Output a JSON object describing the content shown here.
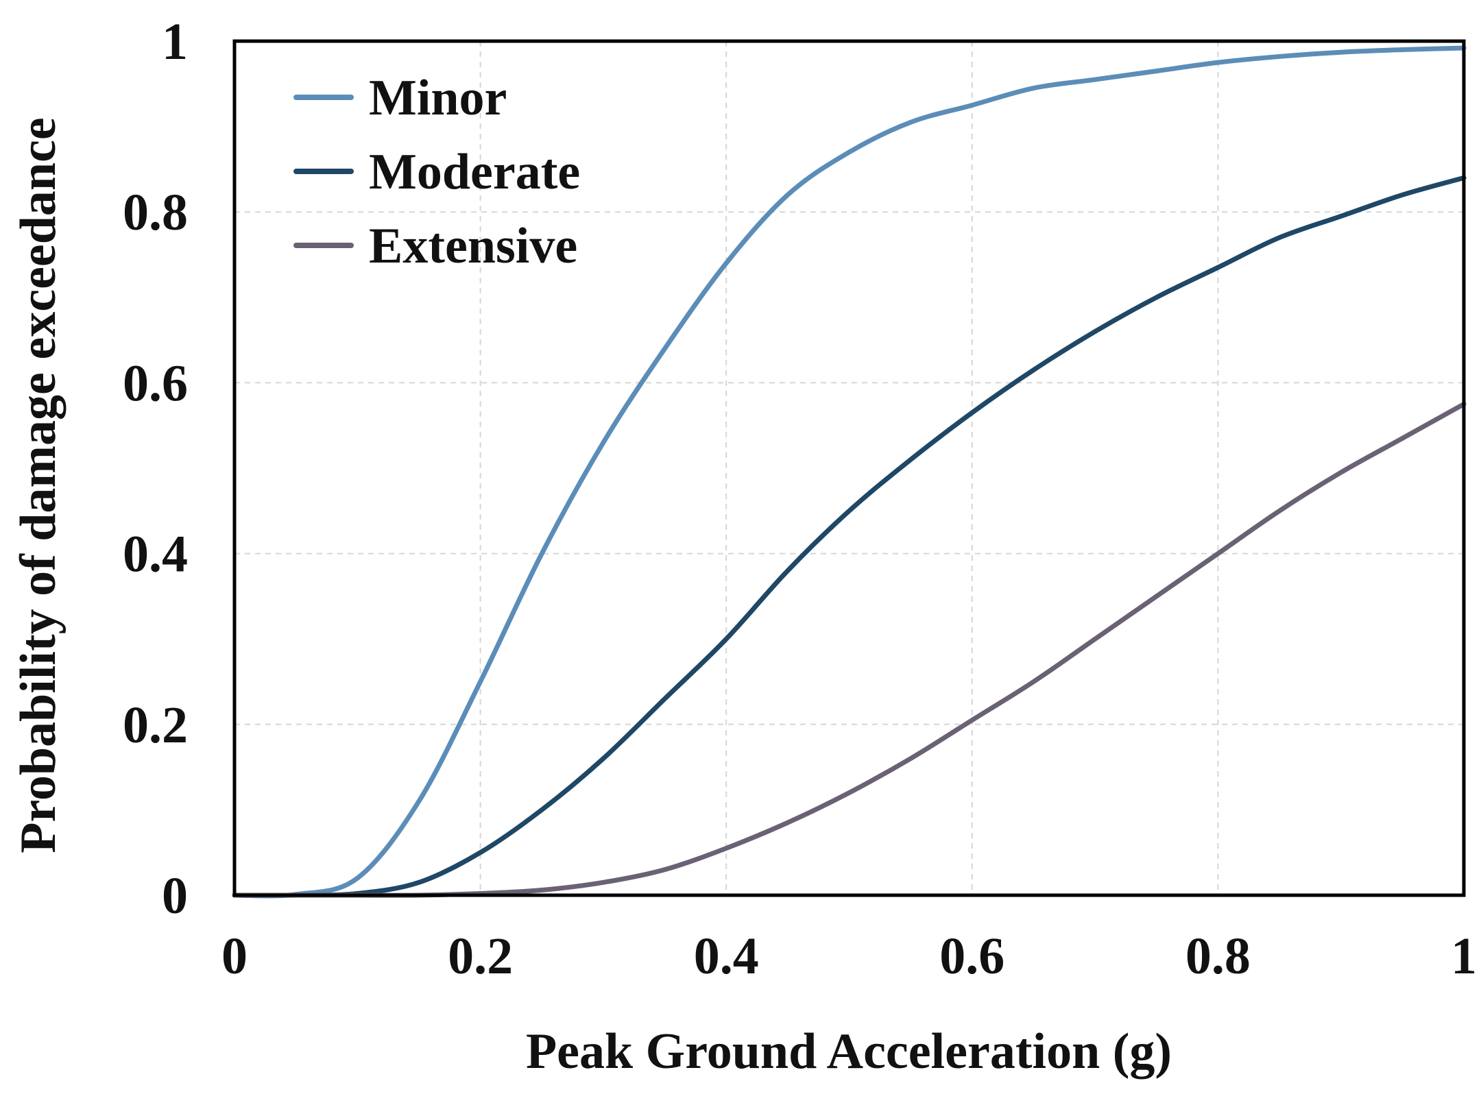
{
  "chart_data": {
    "type": "line",
    "title": "",
    "xlabel": "Peak Ground Acceleration (g)",
    "ylabel": "Probability of damage exceedance",
    "xlim": [
      0,
      1
    ],
    "ylim": [
      0,
      1
    ],
    "grid": true,
    "legend_position": "top-left",
    "x_ticks": [
      0,
      0.2,
      0.4,
      0.6,
      0.8,
      1
    ],
    "x_tick_labels": [
      "0",
      "0.2",
      "0.4",
      "0.6",
      "0.8",
      "1"
    ],
    "y_ticks": [
      0,
      0.2,
      0.4,
      0.6,
      0.8,
      1
    ],
    "y_tick_labels": [
      "0",
      "0.2",
      "0.4",
      "0.6",
      "0.8",
      "1"
    ],
    "x": [
      0,
      0.05,
      0.1,
      0.15,
      0.2,
      0.25,
      0.3,
      0.35,
      0.4,
      0.45,
      0.5,
      0.55,
      0.6,
      0.65,
      0.7,
      0.75,
      0.8,
      0.85,
      0.9,
      0.95,
      1.0
    ],
    "series": [
      {
        "name": "Minor",
        "color": "#5b8db8",
        "values": [
          0,
          0.001,
          0.02,
          0.11,
          0.25,
          0.4,
          0.53,
          0.64,
          0.74,
          0.82,
          0.87,
          0.905,
          0.925,
          0.945,
          0.955,
          0.965,
          0.975,
          0.982,
          0.987,
          0.99,
          0.992
        ]
      },
      {
        "name": "Moderate",
        "color": "#1f4766",
        "values": [
          0,
          0,
          0.002,
          0.015,
          0.05,
          0.1,
          0.16,
          0.23,
          0.3,
          0.38,
          0.45,
          0.51,
          0.565,
          0.615,
          0.66,
          0.7,
          0.735,
          0.77,
          0.795,
          0.82,
          0.84
        ]
      },
      {
        "name": "Extensive",
        "color": "#6a6274",
        "values": [
          0,
          0,
          0,
          0,
          0.002,
          0.006,
          0.015,
          0.03,
          0.055,
          0.085,
          0.12,
          0.16,
          0.205,
          0.25,
          0.3,
          0.35,
          0.4,
          0.45,
          0.495,
          0.535,
          0.575
        ]
      }
    ]
  }
}
